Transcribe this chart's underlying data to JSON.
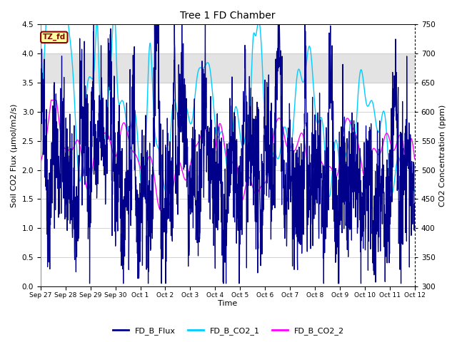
{
  "title": "Tree 1 FD Chamber",
  "xlabel": "Time",
  "ylabel_left": "Soil CO2 Flux (μmol/m2/s)",
  "ylabel_right": "CO2 Concentration (ppm)",
  "ylim_left": [
    0.0,
    4.5
  ],
  "ylim_right": [
    300,
    750
  ],
  "n_days": 15,
  "shaded_region": [
    3.5,
    4.0
  ],
  "legend_labels": [
    "FD_B_Flux",
    "FD_B_CO2_1",
    "FD_B_CO2_2"
  ],
  "flux_color": "#00008B",
  "co2_1_color": "#00CCFF",
  "co2_2_color": "#FF00FF",
  "annotation_text": "TZ_fd",
  "annotation_color": "#8B0000",
  "annotation_bg": "#FFFFA0",
  "x_tick_labels": [
    "Sep 27",
    "Sep 28",
    "Sep 29",
    "Sep 30",
    "Oct 1",
    "Oct 2",
    "Oct 3",
    "Oct 4",
    "Oct 5",
    "Oct 6",
    "Oct 7",
    "Oct 8",
    "Oct 9",
    "Oct 10",
    "Oct 11",
    "Oct 12"
  ],
  "yticks_left": [
    0.0,
    0.5,
    1.0,
    1.5,
    2.0,
    2.5,
    3.0,
    3.5,
    4.0,
    4.5
  ],
  "yticks_right": [
    300,
    350,
    400,
    450,
    500,
    550,
    600,
    650,
    700,
    750
  ],
  "n_points": 2000,
  "seed_flux": 42,
  "seed_co2_1": 17,
  "seed_co2_2": 99
}
